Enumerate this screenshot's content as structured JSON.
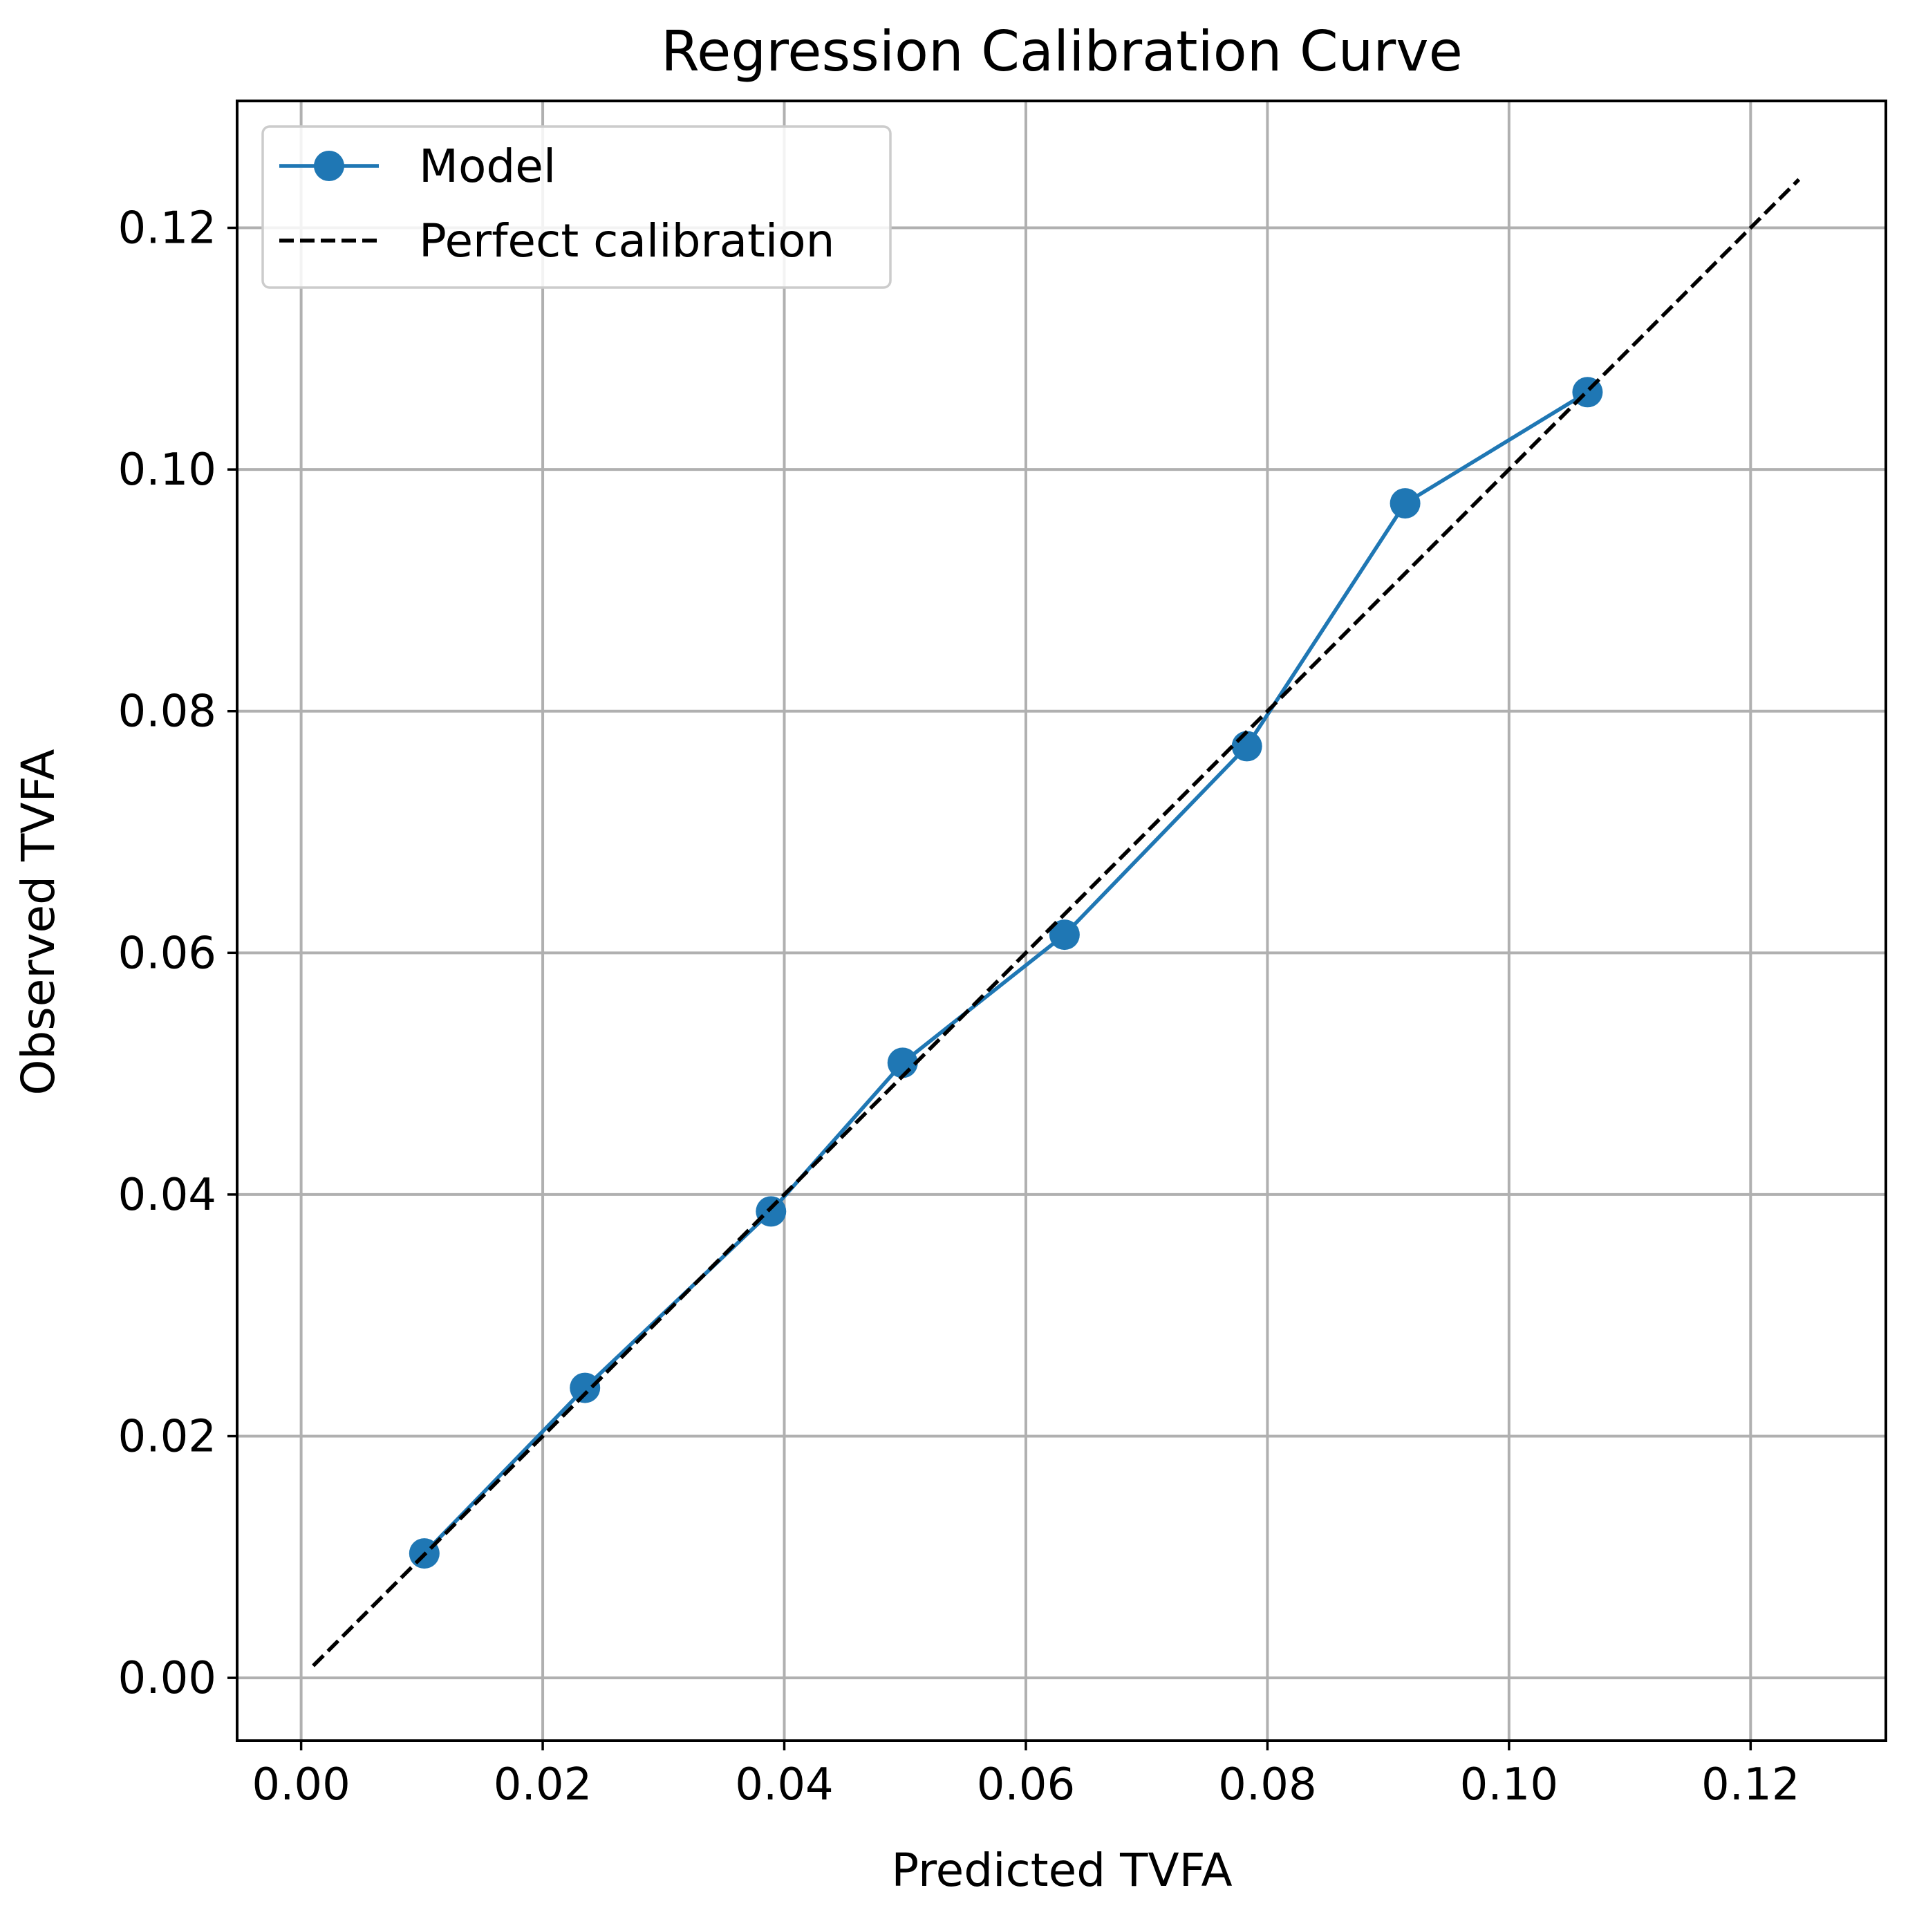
{
  "chart_data": {
    "type": "line",
    "title": "Regression Calibration Curve",
    "xlabel": "Predicted TVFA",
    "ylabel": "Observed TVFA",
    "xlim": [
      -0.0053,
      0.1312
    ],
    "ylim": [
      -0.0052,
      0.1305
    ],
    "xticks": [
      "0.00",
      "0.02",
      "0.04",
      "0.06",
      "0.08",
      "0.10",
      "0.12"
    ],
    "yticks": [
      "0.00",
      "0.02",
      "0.04",
      "0.06",
      "0.08",
      "0.10",
      "0.12"
    ],
    "grid": true,
    "legend_position": "upper-left",
    "series": [
      {
        "name": "Model",
        "style": "solid line with circle markers",
        "color": "#1f77b4",
        "x": [
          0.0102,
          0.0235,
          0.0389,
          0.0498,
          0.0632,
          0.0783,
          0.0914,
          0.1065
        ],
        "y": [
          0.0103,
          0.024,
          0.0386,
          0.0509,
          0.0615,
          0.0771,
          0.0972,
          0.1064
        ]
      },
      {
        "name": "Perfect calibration",
        "style": "dashed line",
        "color": "#000000",
        "x": [
          0.001,
          0.124
        ],
        "y": [
          0.001,
          0.124
        ]
      }
    ]
  }
}
